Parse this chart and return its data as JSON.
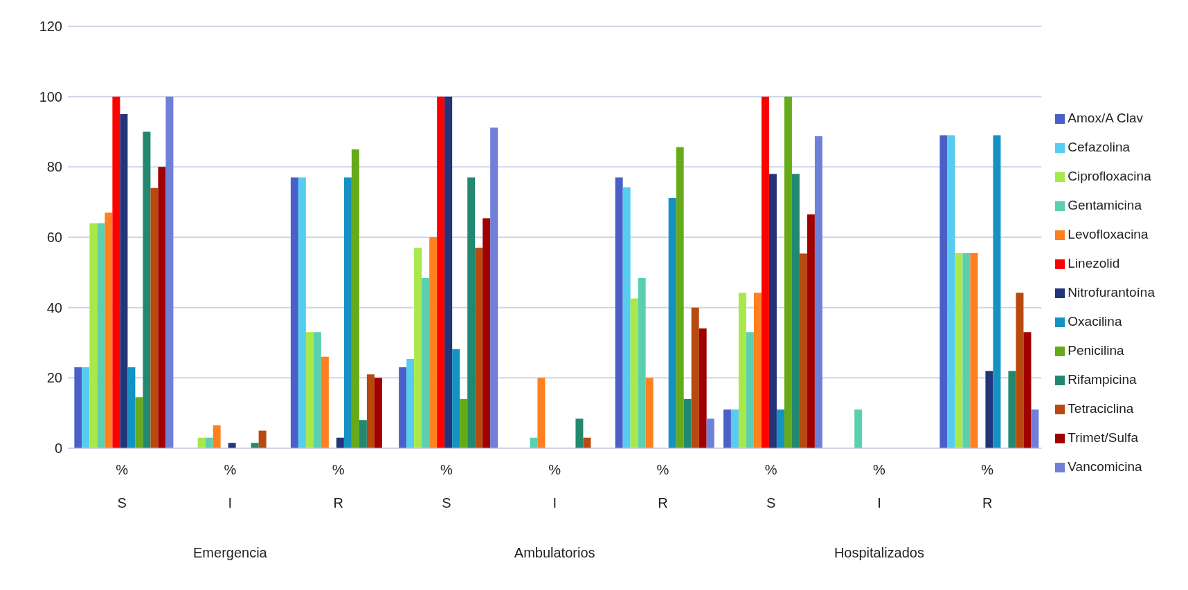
{
  "chart_data": {
    "type": "bar",
    "categories": [
      "%\nS",
      "%\nI",
      "%\nR",
      "%\nS",
      "%\nI",
      "%\nR",
      "%\nS",
      "%\nI",
      "%\nR"
    ],
    "annotations": [
      "Emergencia",
      "Ambulatorios",
      "Hospitalizados"
    ],
    "ylim": [
      0,
      120
    ],
    "yticks": [
      0,
      20,
      40,
      60,
      80,
      100,
      120
    ],
    "grid": "y",
    "legend": "right",
    "series": [
      {
        "name": "Amox/A Clav",
        "color": "#4a5fc8",
        "values": [
          23,
          0,
          77,
          23,
          0,
          77,
          11,
          0,
          89
        ]
      },
      {
        "name": "Cefazolina",
        "color": "#55ccf0",
        "values": [
          23,
          0,
          77,
          25.4,
          0,
          74.2,
          11,
          0,
          89
        ]
      },
      {
        "name": "Ciprofloxacina",
        "color": "#a8e84a",
        "values": [
          64,
          3,
          33,
          57,
          0,
          42.6,
          44.2,
          0,
          55.5
        ]
      },
      {
        "name": "Gentamicina",
        "color": "#5ad0b0",
        "values": [
          64,
          3,
          33,
          48.4,
          3,
          48.4,
          33,
          11,
          55.5
        ]
      },
      {
        "name": "Levofloxacina",
        "color": "#ff8020",
        "values": [
          67,
          6.5,
          26,
          60,
          20,
          20,
          44.2,
          0,
          55.5
        ]
      },
      {
        "name": "Linezolid",
        "color": "#ff0000",
        "values": [
          100,
          0,
          0,
          100,
          0,
          0,
          100,
          0,
          0
        ]
      },
      {
        "name": "Nitrofurantoína",
        "color": "#233478",
        "values": [
          95,
          1.5,
          3,
          100,
          0,
          0,
          78,
          0,
          22
        ]
      },
      {
        "name": "Oxacilina",
        "color": "#1592c4",
        "values": [
          23,
          0,
          77,
          28.2,
          0,
          71.2,
          11,
          0,
          89
        ]
      },
      {
        "name": "Penicilina",
        "color": "#66aa1a",
        "values": [
          14.5,
          0,
          85,
          14,
          0,
          85.6,
          100,
          0,
          0
        ]
      },
      {
        "name": "Rifampicina",
        "color": "#228870",
        "values": [
          90,
          1.5,
          8,
          77,
          8.4,
          14,
          78,
          0,
          22
        ]
      },
      {
        "name": "Tetraciclina",
        "color": "#b84a10",
        "values": [
          74,
          5,
          21,
          57,
          3,
          40,
          55.4,
          0,
          44.2
        ]
      },
      {
        "name": "Trimet/Sulfa",
        "color": "#a00000",
        "values": [
          80,
          0,
          20,
          65.4,
          0,
          34.1,
          66.5,
          0,
          33
        ]
      },
      {
        "name": "Vancomicina",
        "color": "#7080d8",
        "values": [
          100,
          0,
          0,
          91.2,
          0,
          8.4,
          88.7,
          0,
          11
        ]
      }
    ]
  }
}
